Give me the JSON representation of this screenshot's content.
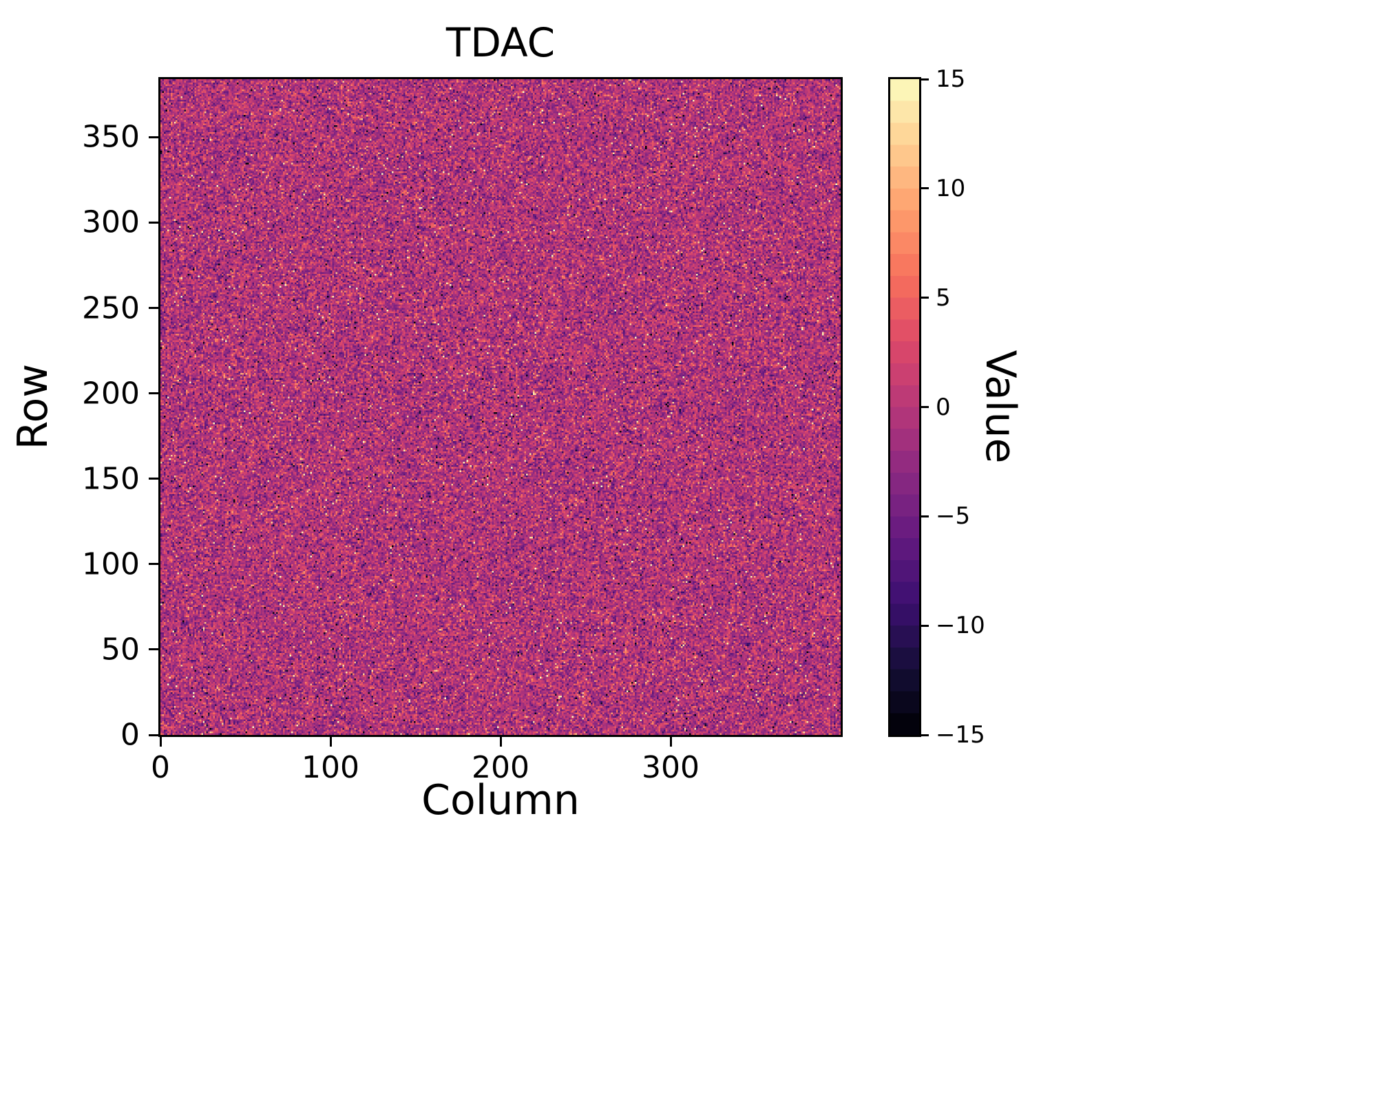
{
  "chart_data": {
    "type": "heatmap",
    "title": "TDAC",
    "xlabel": "Column",
    "ylabel": "Row",
    "colorbar_label": "Value",
    "cols": 400,
    "rows": 384,
    "xlim": [
      0,
      400
    ],
    "ylim": [
      0,
      384
    ],
    "vmin": -15,
    "vmax": 15,
    "xticks": [
      0,
      100,
      200,
      300
    ],
    "yticks": [
      0,
      50,
      100,
      150,
      200,
      250,
      300,
      350
    ],
    "colorbar_ticks": [
      15,
      10,
      5,
      0,
      -5,
      -10,
      -15
    ],
    "colorbar_levels": 30,
    "colormap": "magma",
    "colormap_stops": [
      "#000004",
      "#140e36",
      "#3b0f70",
      "#641a80",
      "#8c2981",
      "#b73779",
      "#de4968",
      "#f7705c",
      "#fe9f6d",
      "#fecf92",
      "#fcfdbf"
    ],
    "distribution": {
      "kind": "integer gaussian noise per pixel (values read from colorbar scale)",
      "mean": -0.5,
      "std": 3.2,
      "outlier_fraction": 0.04,
      "seed": 42
    },
    "grid": false,
    "legend_position": "colorbar-right"
  }
}
